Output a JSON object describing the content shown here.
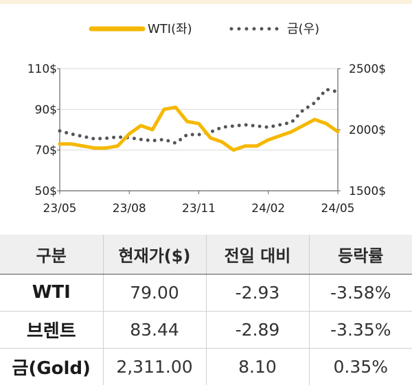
{
  "chart_data": {
    "type": "line",
    "legend": [
      {
        "name": "WTI(좌)",
        "color": "#f5b800",
        "style": "solid",
        "axis": "left"
      },
      {
        "name": "금(우)",
        "color": "#555555",
        "style": "dotted",
        "axis": "right"
      }
    ],
    "legend_position": "top-center",
    "x_ticks": [
      "23/05",
      "23/08",
      "23/11",
      "24/02",
      "24/05"
    ],
    "y_left": {
      "ticks": [
        "110$",
        "90$",
        "70$",
        "50$"
      ],
      "range": [
        50,
        110
      ]
    },
    "y_right": {
      "ticks": [
        "2500$",
        "2000$",
        "1500$"
      ],
      "range": [
        1500,
        2500
      ]
    },
    "x_range": [
      0,
      12
    ],
    "grid": "horizontal",
    "series": [
      {
        "name": "WTI(좌)",
        "axis": "left",
        "x": [
          0,
          0.5,
          1,
          1.5,
          2,
          2.5,
          3,
          3.5,
          4,
          4.5,
          5,
          5.5,
          6,
          6.5,
          7,
          7.5,
          8,
          8.5,
          9,
          9.5,
          10,
          10.5,
          11,
          11.5,
          12
        ],
        "values": [
          73,
          73,
          72,
          71,
          71,
          72,
          78,
          82,
          80,
          90,
          91,
          84,
          83,
          76,
          74,
          70,
          72,
          72,
          75,
          77,
          79,
          82,
          85,
          83,
          79
        ]
      },
      {
        "name": "금(우)",
        "axis": "right",
        "x": [
          0,
          0.5,
          1,
          1.5,
          2,
          2.5,
          3,
          3.5,
          4,
          4.5,
          5,
          5.5,
          6,
          6.5,
          7,
          7.5,
          8,
          8.5,
          9,
          9.5,
          10,
          10.5,
          11,
          11.5,
          12
        ],
        "values": [
          1990,
          1965,
          1945,
          1925,
          1930,
          1940,
          1935,
          1920,
          1910,
          1920,
          1890,
          1960,
          1960,
          1980,
          2020,
          2030,
          2040,
          2030,
          2020,
          2040,
          2060,
          2160,
          2220,
          2330,
          2310
        ]
      }
    ]
  },
  "table": {
    "headers": [
      "구분",
      "현재가($)",
      "전일 대비",
      "등락률"
    ],
    "rows": [
      {
        "name": "WTI",
        "price": "79.00",
        "change": "-2.93",
        "rate": "-3.58%"
      },
      {
        "name": "브렌트",
        "price": "83.44",
        "change": "-2.89",
        "rate": "-3.35%"
      },
      {
        "name": "금(Gold)",
        "price": "2,311.00",
        "change": "8.10",
        "rate": "0.35%"
      }
    ]
  }
}
